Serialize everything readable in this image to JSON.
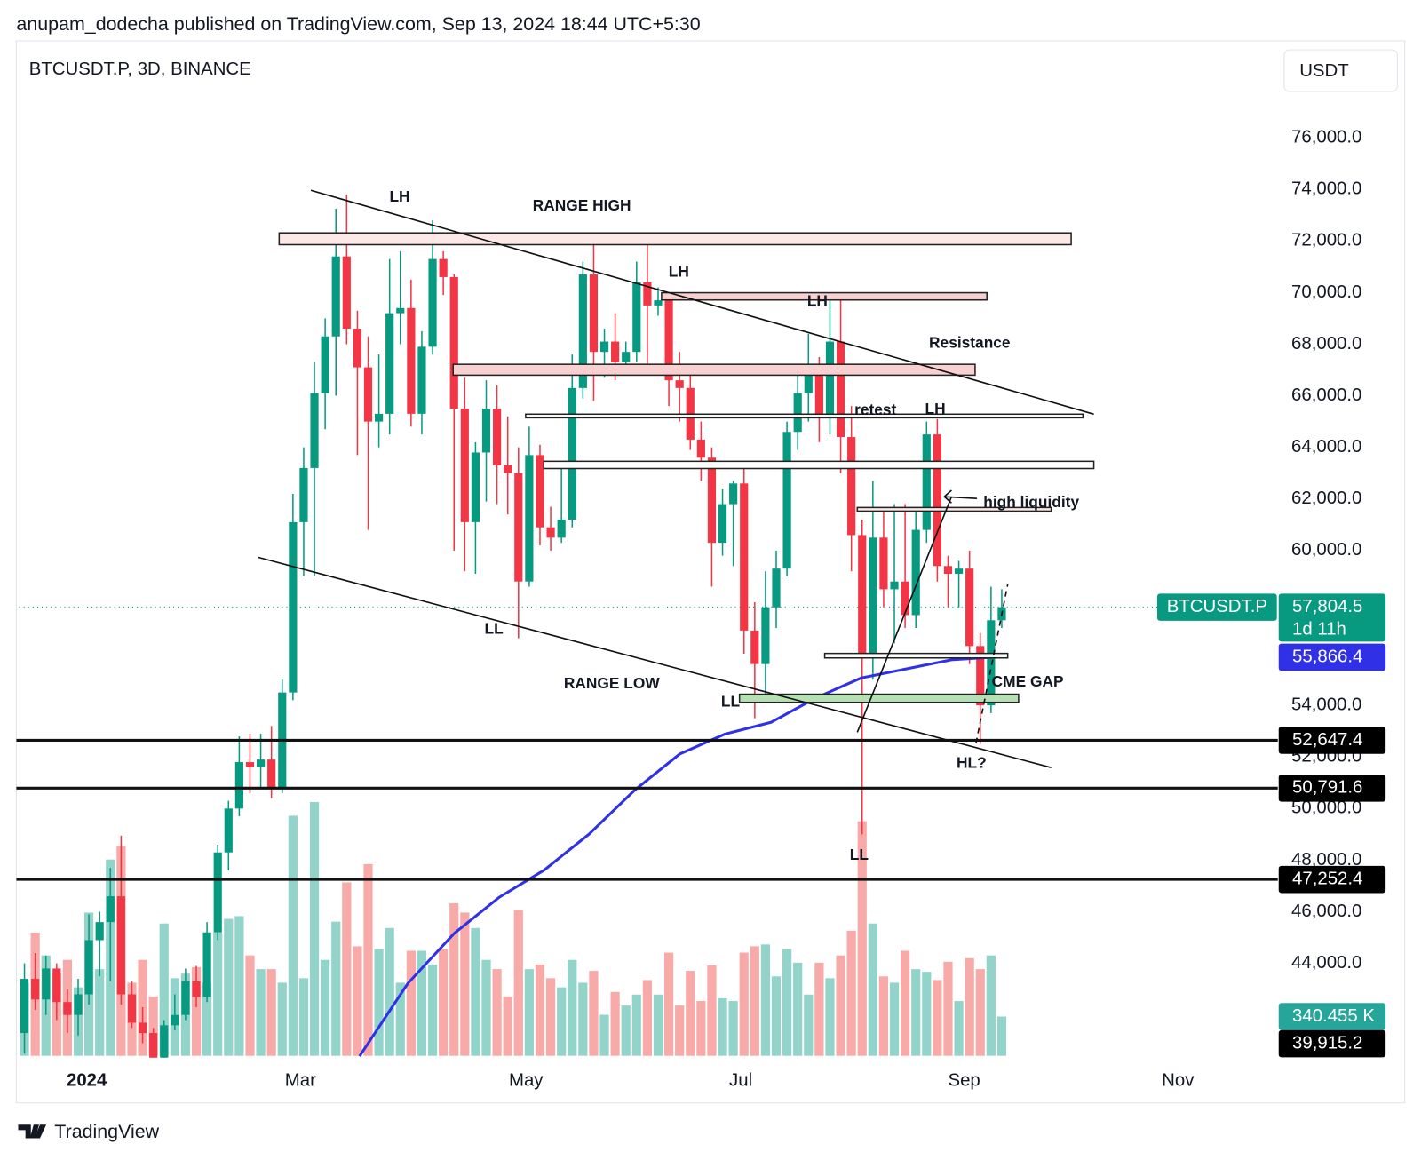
{
  "header": "anupam_dodecha published on TradingView.com, Sep 13, 2024 18:44 UTC+5:30",
  "brand": "TradingView",
  "chart_data": {
    "type": "candlestick",
    "title": "BTCUSDT.P, 3D, BINANCE",
    "currency": "USDT",
    "up_color": "#089981",
    "down_color": "#f23645",
    "volume_up_color": "#93d4ca",
    "volume_down_color": "#f7aaa8",
    "open": [
      41300,
      43400,
      42600,
      43800,
      42500,
      42000,
      42800,
      44900,
      45600,
      46600,
      42800,
      41700,
      41300,
      39900,
      41600,
      42000,
      43300,
      42700,
      45200,
      48300,
      50000,
      51800,
      51600,
      51900,
      50800,
      54500,
      61100,
      63200,
      66100,
      68300,
      71400,
      68600,
      67100,
      65000,
      65300,
      69200,
      69400,
      65300,
      67900,
      71300,
      70600,
      65500,
      61100,
      63800,
      65500,
      63300,
      63000,
      58800,
      63700,
      60900,
      60500,
      61200,
      66300,
      70700,
      67700,
      68100,
      67300,
      67700,
      70400,
      69500,
      69700,
      66600,
      66300,
      64300,
      63600,
      60300,
      61800,
      62600,
      56900,
      55600,
      57800,
      59300,
      64600,
      66100,
      67200,
      65300,
      68100,
      64400,
      60600,
      55900,
      60500,
      58500,
      58800,
      57500,
      60800,
      64500,
      59400,
      59100,
      59300,
      56300,
      54000,
      57300
    ],
    "high": [
      44000,
      44400,
      44300,
      44000,
      43000,
      43400,
      45900,
      46000,
      47700,
      48950,
      43300,
      42300,
      41500,
      41800,
      42800,
      43800,
      43900,
      45600,
      48600,
      50300,
      52800,
      52900,
      52900,
      53200,
      55000,
      62200,
      64000,
      67300,
      69000,
      73250,
      73800,
      69300,
      68300,
      67600,
      71300,
      71600,
      70500,
      68500,
      72800,
      71600,
      70700,
      66700,
      64200,
      66600,
      66400,
      65200,
      64000,
      64800,
      64100,
      61700,
      63300,
      67600,
      71200,
      72000,
      68600,
      69200,
      68100,
      71200,
      72000,
      70200,
      70000,
      67700,
      66800,
      65000,
      64000,
      62400,
      62700,
      63300,
      58000,
      59200,
      60000,
      65000,
      67000,
      68400,
      67500,
      69900,
      70000,
      65600,
      61200,
      62700,
      61500,
      61800,
      61800,
      61600,
      65000,
      65100,
      59800,
      59600,
      60000,
      56800,
      58600,
      58500
    ],
    "low": [
      40500,
      42200,
      42000,
      41800,
      41300,
      41200,
      42400,
      43500,
      43300,
      42400,
      41500,
      40900,
      38500,
      39500,
      41400,
      41800,
      42300,
      42500,
      44900,
      47600,
      49700,
      50600,
      50800,
      50400,
      50600,
      54200,
      59000,
      59000,
      64700,
      66000,
      68000,
      63700,
      60800,
      64000,
      64500,
      68000,
      64800,
      64500,
      67600,
      69900,
      60000,
      59200,
      59100,
      61900,
      61800,
      61400,
      56600,
      58600,
      60200,
      60000,
      60300,
      60900,
      65900,
      65800,
      66700,
      66600,
      66800,
      67300,
      67000,
      69100,
      65600,
      65000,
      63900,
      62700,
      58600,
      59800,
      59400,
      56000,
      53500,
      54300,
      57000,
      59000,
      63900,
      65000,
      64200,
      64500,
      63000,
      59200,
      49000,
      55000,
      57800,
      56400,
      57000,
      57000,
      60300,
      58800,
      57800,
      57800,
      55600,
      52500,
      53700,
      57000
    ],
    "close": [
      43400,
      42600,
      43800,
      42500,
      42000,
      42800,
      44900,
      45600,
      46600,
      42800,
      41700,
      41300,
      39900,
      41600,
      42000,
      43300,
      42700,
      45200,
      48300,
      50000,
      51800,
      51600,
      51900,
      50800,
      54500,
      61100,
      63200,
      66100,
      68300,
      71400,
      68600,
      67100,
      65000,
      65300,
      69200,
      69400,
      65300,
      67900,
      71300,
      70600,
      65500,
      61100,
      63800,
      65500,
      63300,
      63000,
      58800,
      63700,
      60900,
      60500,
      61200,
      66300,
      70700,
      67700,
      68100,
      67300,
      67700,
      70400,
      69500,
      69700,
      66600,
      66300,
      64300,
      63600,
      60300,
      61800,
      62600,
      56900,
      55600,
      57800,
      59300,
      64600,
      66100,
      67200,
      65300,
      68100,
      64400,
      60600,
      55900,
      60500,
      58500,
      58800,
      57500,
      60800,
      64500,
      59400,
      59100,
      59300,
      56300,
      54000,
      57300,
      57804.5
    ],
    "volume": [
      634,
      1069,
      871,
      713,
      832,
      594,
      1243,
      752,
      1703,
      1822,
      634,
      832,
      515,
      1148,
      673,
      713,
      768,
      634,
      1069,
      1188,
      1212,
      871,
      752,
      752,
      634,
      2083,
      673,
      2202,
      832,
      1164,
      1505,
      950,
      1663,
      927,
      1109,
      634,
      911,
      911,
      792,
      927,
      1323,
      1243,
      1109,
      832,
      752,
      515,
      1267,
      752,
      792,
      673,
      594,
      832,
      634,
      737,
      356,
      554,
      436,
      531,
      657,
      531,
      895,
      436,
      737,
      475,
      784,
      499,
      475,
      895,
      950,
      966,
      689,
      927,
      808,
      531,
      808,
      673,
      871,
      1085,
      2035,
      1148,
      689,
      634,
      911,
      752,
      729,
      657,
      816,
      475,
      847,
      752,
      871,
      340.455
    ],
    "volume_label": {
      "value": 340.455,
      "label": "340.455 K"
    },
    "ma": {
      "x": [
        31.2,
        35.7,
        40,
        44.2,
        48.4,
        52.6,
        56.8,
        61,
        65.2,
        69.5,
        73.7,
        77.9,
        82.1,
        86.3,
        90.1
      ],
      "values": [
        40400,
        43224,
        45156,
        46561,
        47615,
        49020,
        50706,
        52112,
        52884,
        53341,
        54290,
        55063,
        55414,
        55765,
        55866.4
      ],
      "color": "#3030e6",
      "label": {
        "value": 55866.4,
        "label": "55,866.4"
      }
    },
    "last_price": {
      "value": 57804.5,
      "label": "57,804.5",
      "symbol": "BTCUSDT.P",
      "countdown": "1d 11h"
    },
    "levels": [
      {
        "value": 52647.4,
        "label": "52,647.4"
      },
      {
        "value": 50791.6,
        "label": "50,791.6"
      },
      {
        "value": 47252.4,
        "label": "47,252.4"
      }
    ],
    "extra_price_label": {
      "value": 39915.2,
      "label": "39,915.2"
    },
    "xlim": [
      -0.5,
      116.7
    ],
    "xticks": [
      {
        "value": 5.8,
        "label": "2024"
      },
      {
        "value": 25.7,
        "label": "Mar"
      },
      {
        "value": 46.7,
        "label": "May"
      },
      {
        "value": 66.7,
        "label": "Jul"
      },
      {
        "value": 87.5,
        "label": "Sep"
      },
      {
        "value": 107.4,
        "label": "Nov"
      }
    ],
    "ylim": [
      40418,
      79758
    ],
    "yticks": [
      {
        "value": 44000,
        "label": "44,000.0"
      },
      {
        "value": 46000,
        "label": "46,000.0"
      },
      {
        "value": 48000,
        "label": "48,000.0"
      },
      {
        "value": 50000,
        "label": "50,000.0"
      },
      {
        "value": 52000,
        "label": "52,000.0"
      },
      {
        "value": 54000,
        "label": "54,000.0"
      },
      {
        "value": 56000,
        "label": "56,000.0"
      },
      {
        "value": 58000,
        "label": "58,000.0"
      },
      {
        "value": 60000,
        "label": "60,000.0"
      },
      {
        "value": 62000,
        "label": "62,000.0"
      },
      {
        "value": 64000,
        "label": "64,000.0"
      },
      {
        "value": 66000,
        "label": "66,000.0"
      },
      {
        "value": 68000,
        "label": "68,000.0"
      },
      {
        "value": 70000,
        "label": "70,000.0"
      },
      {
        "value": 72000,
        "label": "72,000.0"
      },
      {
        "value": 74000,
        "label": "74,000.0"
      },
      {
        "value": 76000,
        "label": "76,000.0"
      }
    ],
    "grid": false,
    "annotations": [
      "LH",
      "RANGE HIGH",
      "LH",
      "LH",
      "Resistance",
      "retest",
      "LH",
      "high liquidity",
      "CME GAP",
      "LL",
      "RANGE LOW",
      "LL",
      "HL?",
      "LL"
    ]
  }
}
